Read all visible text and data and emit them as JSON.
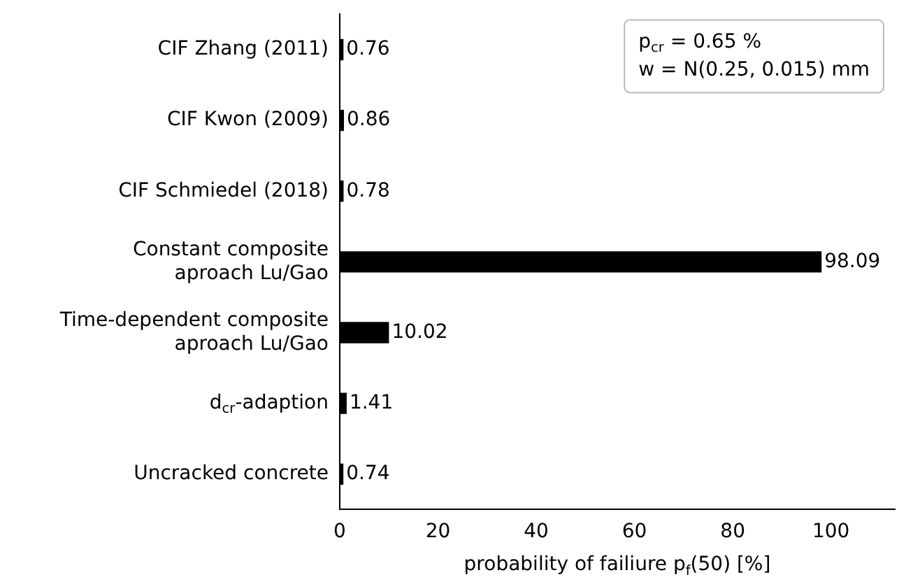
{
  "chart_data": {
    "type": "bar",
    "orientation": "horizontal",
    "categories": [
      "CIF Zhang (2011)",
      "CIF Kwon (2009)",
      "CIF Schmiedel (2018)",
      "Constant composite\naproach Lu/Gao",
      "Time-dependent composite\naproach Lu/Gao",
      "d$_{cr}$-adaption",
      "Uncracked concrete"
    ],
    "values": [
      0.76,
      0.86,
      0.78,
      98.09,
      10.02,
      1.41,
      0.74
    ],
    "color": "#000000",
    "xlim": [
      0,
      113
    ],
    "xticks": [
      0,
      20,
      40,
      60,
      80,
      100
    ],
    "xlabel": "probability of failiure p$_{f}$(50) [%]",
    "annotations": [
      "p$_{cr}$ = 0.65 %",
      "w = N(0.25, 0.015) mm"
    ],
    "data_labels": true,
    "grid": false,
    "legend": false
  }
}
